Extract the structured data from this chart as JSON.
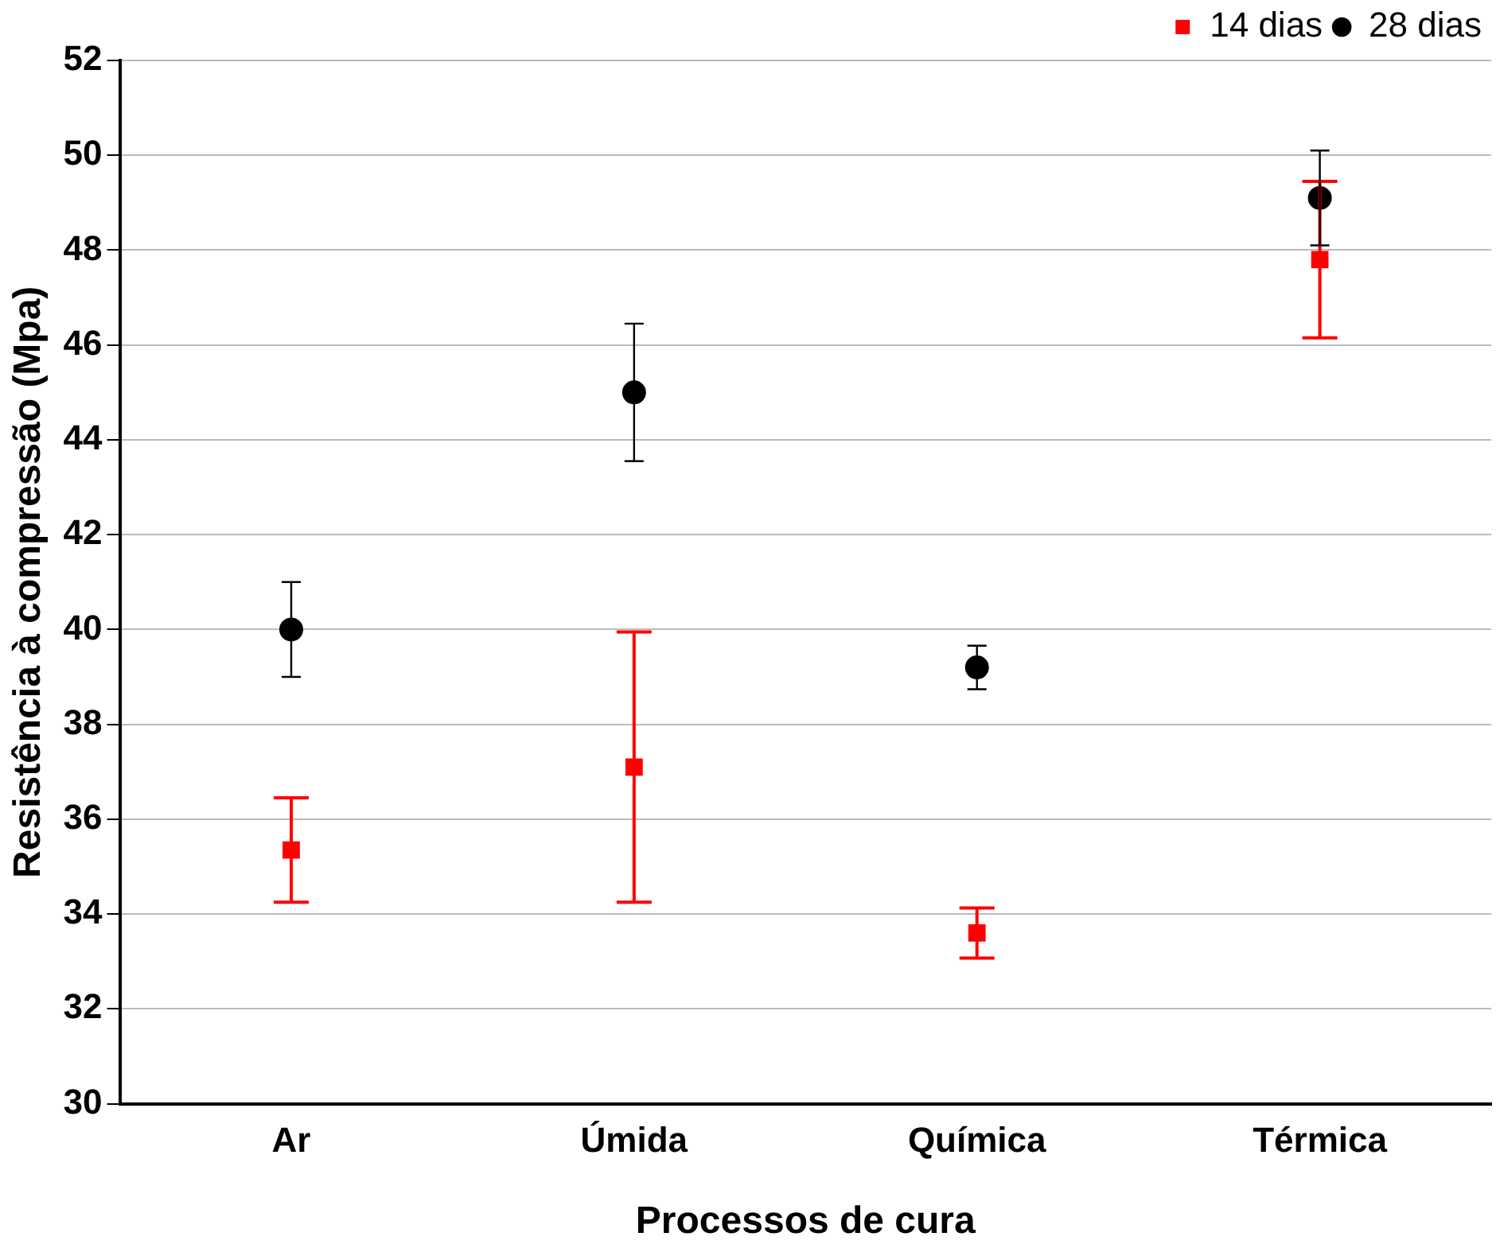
{
  "chart_data": {
    "type": "scatter",
    "xlabel": "Processos de cura",
    "ylabel": "Resistência à compressão (Mpa)",
    "categories": [
      "Ar",
      "Úmida",
      "Química",
      "Térmica"
    ],
    "series": [
      {
        "name": "14 dias",
        "color": "#ff0000",
        "marker": "square",
        "values": [
          35.35,
          37.1,
          33.6,
          47.8
        ],
        "errors": [
          1.1,
          2.85,
          0.53,
          1.65
        ]
      },
      {
        "name": "28 dias",
        "color": "#000000",
        "marker": "circle",
        "values": [
          40.0,
          45.0,
          39.2,
          49.1
        ],
        "errors": [
          1.0,
          1.45,
          0.46,
          1.0
        ]
      }
    ],
    "ylim": [
      30,
      52
    ],
    "yticks": [
      30,
      32,
      34,
      36,
      38,
      40,
      42,
      44,
      46,
      48,
      50,
      52
    ],
    "grid": "y",
    "legend": "top right"
  }
}
